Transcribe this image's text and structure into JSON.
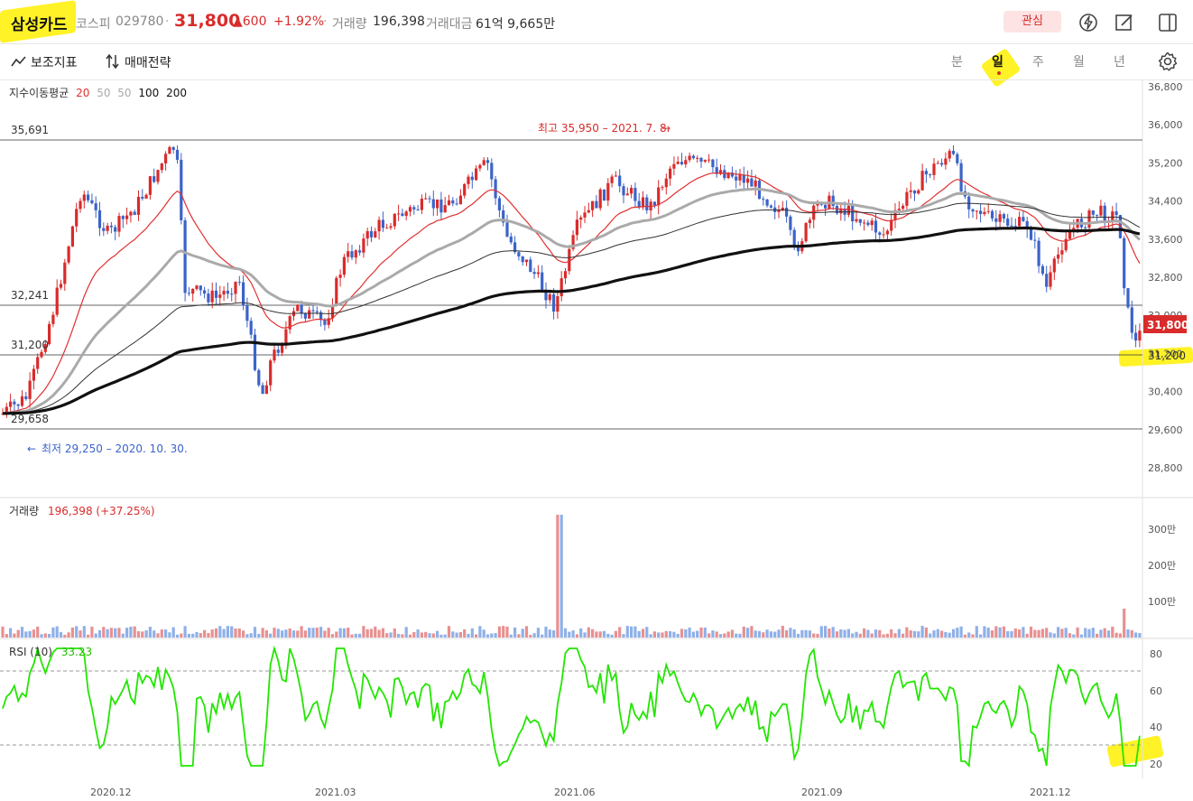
{
  "header": {
    "stock_name": "삼성카드",
    "market": "코스피",
    "code": "029780",
    "separator": "·",
    "price": "31,800",
    "change": "▲600",
    "change_pct": "+1.92%",
    "volume_label": "거래량",
    "volume_value": "196,398",
    "amount_label": "거래대금",
    "amount_value": "61억 9,665만",
    "watch_button": "관심"
  },
  "toolbar": {
    "indicators": "보조지표",
    "strategy": "매매전략",
    "timeframes": [
      "분",
      "일",
      "주",
      "월",
      "년"
    ],
    "active_timeframe": "일"
  },
  "price_panel": {
    "ema_label": "지수이동평균",
    "ema_periods": [
      "20",
      "50",
      "50",
      "100",
      "200"
    ],
    "y_ticks": [
      "36,800",
      "36,000",
      "35,200",
      "34,400",
      "33,600",
      "32,800",
      "32,000",
      "31,200",
      "30,400",
      "29,600",
      "28,800"
    ],
    "hlines": [
      "35,691",
      "32,241",
      "31,200",
      "29,658"
    ],
    "high_note": "최고 35,950 – 2021. 7. 8.",
    "low_note": "최저 29,250 – 2020. 10. 30.",
    "current_tag": "31,800",
    "level_tag": "31,200"
  },
  "volume_panel": {
    "label": "거래량",
    "value": "196,398 (+37.25%)",
    "y_ticks": [
      "300만",
      "200만",
      "100만"
    ]
  },
  "rsi_panel": {
    "label": "RSI (10)",
    "value": "33.23",
    "y_ticks": [
      "80",
      "60",
      "40",
      "20"
    ]
  },
  "x_ticks": [
    "2020.12",
    "2021.03",
    "2021.06",
    "2021.09",
    "2021.12"
  ],
  "colors": {
    "up": "#d92b2b",
    "down": "#3b63c9",
    "rsi": "#22e600",
    "ema20": "#e03030",
    "highlight": "#fff000"
  }
}
